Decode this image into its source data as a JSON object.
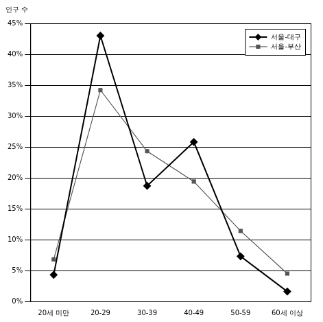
{
  "chart_data": {
    "type": "line",
    "y_label": "인구 수",
    "categories": [
      "20세 미만",
      "20-29",
      "30-39",
      "40-49",
      "50-59",
      "60세 이상"
    ],
    "series": [
      {
        "name": "서울-대구",
        "color": "#000000",
        "marker": "diamond",
        "line_style": "solid",
        "values": [
          4.3,
          43,
          18.7,
          25.8,
          7.3,
          1.6
        ]
      },
      {
        "name": "서울-부산",
        "color": "#555555",
        "marker": "square",
        "line_style": "solid",
        "values": [
          6.8,
          34.2,
          24.3,
          19.4,
          11.4,
          4.5
        ]
      }
    ],
    "ylim": [
      0,
      45
    ],
    "yticks": [
      {
        "value": 0,
        "label": "0%"
      },
      {
        "value": 5,
        "label": "5%"
      },
      {
        "value": 10,
        "label": "10%"
      },
      {
        "value": 15,
        "label": "15%"
      },
      {
        "value": 20,
        "label": "20%"
      },
      {
        "value": 25,
        "label": "25%"
      },
      {
        "value": 30,
        "label": "30%"
      },
      {
        "value": 35,
        "label": "35%"
      },
      {
        "value": 40,
        "label": "40%"
      },
      {
        "value": 45,
        "label": "45%"
      }
    ],
    "grid": true,
    "legend": "upper right"
  }
}
